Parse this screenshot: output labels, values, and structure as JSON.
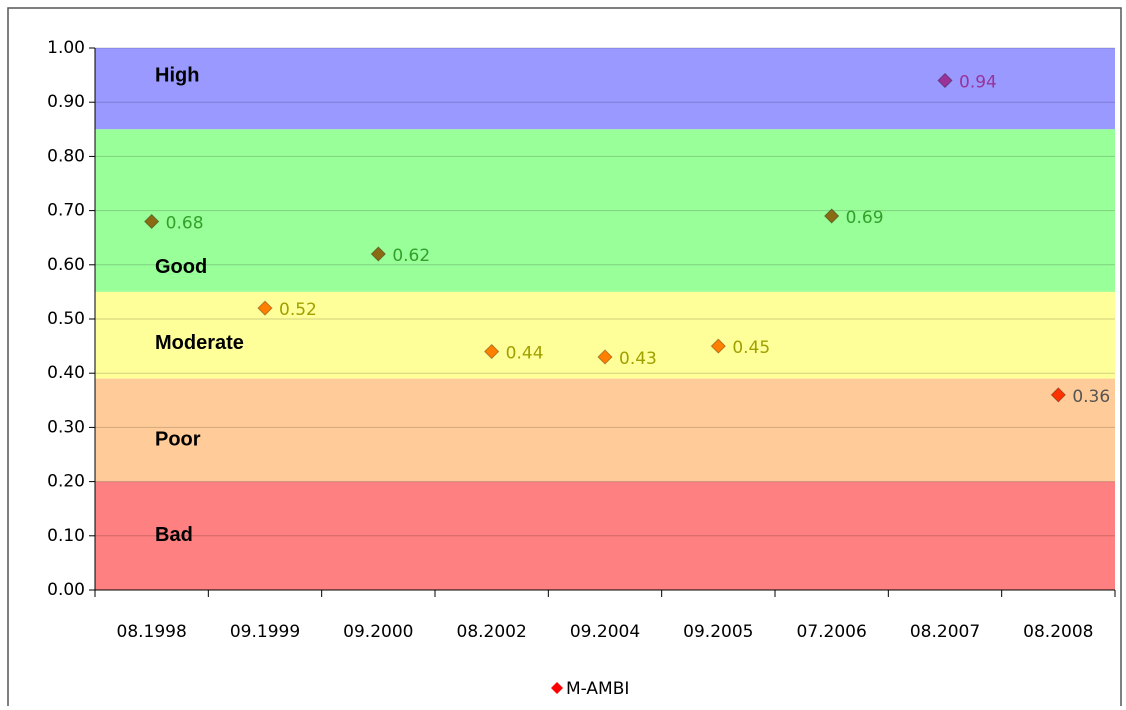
{
  "chart_data": {
    "type": "scatter",
    "categories": [
      "08.1998",
      "09.1999",
      "09.2000",
      "08.2002",
      "09.2004",
      "09.2005",
      "07.2006",
      "08.2007",
      "08.2008"
    ],
    "series": [
      {
        "name": "M-AMBI",
        "color": "#ff0000",
        "values": [
          0.68,
          0.52,
          0.62,
          0.44,
          0.43,
          0.45,
          0.69,
          0.94,
          0.36
        ],
        "point_colors": [
          "#8b6a14",
          "#ff7f00",
          "#8b6a14",
          "#ff7f00",
          "#ff7f00",
          "#ff7f00",
          "#8b6a14",
          "#993399",
          "#ff3300"
        ],
        "label_colors": [
          "#33a02c",
          "#a0a000",
          "#33a02c",
          "#a0a000",
          "#a0a000",
          "#a0a000",
          "#33a02c",
          "#993399",
          "#555555"
        ]
      }
    ],
    "bands": [
      {
        "label": "High",
        "from": 0.85,
        "to": 1.0,
        "color": "#9999ff"
      },
      {
        "label": "Good",
        "from": 0.55,
        "to": 0.85,
        "color": "#99ff99"
      },
      {
        "label": "Moderate",
        "from": 0.39,
        "to": 0.55,
        "color": "#ffff99"
      },
      {
        "label": "Poor",
        "from": 0.2,
        "to": 0.39,
        "color": "#ffcc99"
      },
      {
        "label": "Bad",
        "from": 0,
        "to": 0.2,
        "color": "#ff8080"
      }
    ],
    "ylim": [
      0,
      1
    ],
    "yticks": [
      {
        "value": 0,
        "label": "0.00"
      },
      {
        "value": 0.1,
        "label": "0.10"
      },
      {
        "value": 0.2,
        "label": "0.20"
      },
      {
        "value": 0.3,
        "label": "0.30"
      },
      {
        "value": 0.4,
        "label": "0.40"
      },
      {
        "value": 0.5,
        "label": "0.50"
      },
      {
        "value": 0.6,
        "label": "0.60"
      },
      {
        "value": 0.7,
        "label": "0.70"
      },
      {
        "value": 0.8,
        "label": "0.80"
      },
      {
        "value": 0.9,
        "label": "0.90"
      },
      {
        "value": 1,
        "label": "1.00"
      }
    ],
    "grid": true,
    "legend": "bottom"
  }
}
